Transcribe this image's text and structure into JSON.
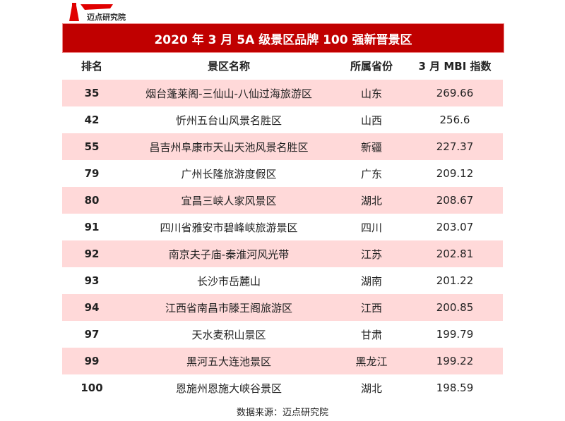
{
  "logo": {
    "text": "迈点研究院",
    "color": "#e00000"
  },
  "title": "2020 年 3 月 5A 级景区品牌 100 强新晋景区",
  "headers": [
    "排名",
    "景区名称",
    "所属省份",
    "3 月 MBI 指数"
  ],
  "rows": [
    {
      "rank": "35",
      "name": "烟台蓬莱阁-三仙山-八仙过海旅游区",
      "province": "山东",
      "mbi": "269.66"
    },
    {
      "rank": "42",
      "name": "忻州五台山风景名胜区",
      "province": "山西",
      "mbi": "256.6"
    },
    {
      "rank": "55",
      "name": "昌吉州阜康市天山天池风景名胜区",
      "province": "新疆",
      "mbi": "227.37"
    },
    {
      "rank": "79",
      "name": "广州长隆旅游度假区",
      "province": "广东",
      "mbi": "209.12"
    },
    {
      "rank": "80",
      "name": "宜昌三峡人家风景区",
      "province": "湖北",
      "mbi": "208.67"
    },
    {
      "rank": "91",
      "name": "四川省雅安市碧峰峡旅游景区",
      "province": "四川",
      "mbi": "203.07"
    },
    {
      "rank": "92",
      "name": "南京夫子庙-秦淮河风光带",
      "province": "江苏",
      "mbi": "202.81"
    },
    {
      "rank": "93",
      "name": "长沙市岳麓山",
      "province": "湖南",
      "mbi": "201.22"
    },
    {
      "rank": "94",
      "name": "江西省南昌市滕王阁旅游区",
      "province": "江西",
      "mbi": "200.85"
    },
    {
      "rank": "97",
      "name": "天水麦积山景区",
      "province": "甘肃",
      "mbi": "199.79"
    },
    {
      "rank": "99",
      "name": "黑河五大连池景区",
      "province": "黑龙江",
      "mbi": "199.22"
    },
    {
      "rank": "100",
      "name": "恩施州恩施大峡谷景区",
      "province": "湖北",
      "mbi": "198.59"
    }
  ],
  "source": "数据来源：迈点研究院",
  "colors": {
    "title_bg": "#c00000",
    "row_alt": "#ffd9d9"
  }
}
